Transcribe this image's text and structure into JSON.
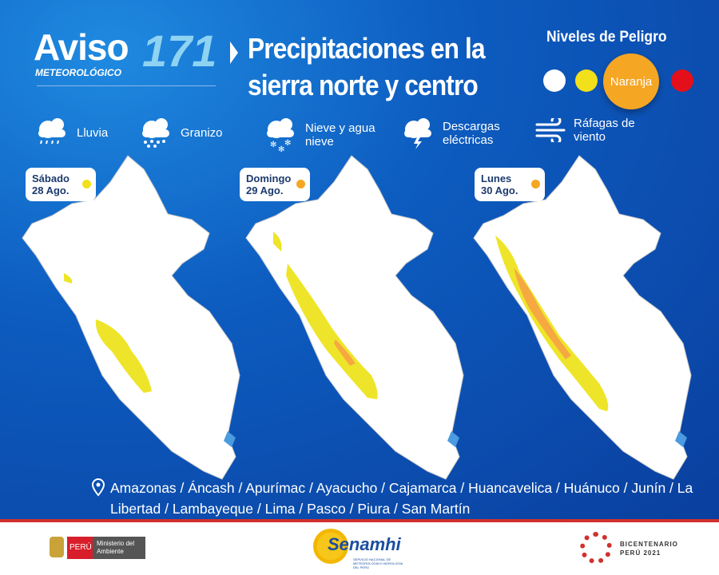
{
  "header": {
    "aviso": "Aviso",
    "subtitle": "METEOROLÓGICO",
    "number": "171",
    "title_line1": "Precipitaciones en la",
    "title_line2": "sierra norte y centro"
  },
  "levels": {
    "title": "Niveles de Peligro",
    "active_label": "Naranja",
    "colors": [
      "#ffffff",
      "#f2e01b",
      "#f5a623",
      "#e3101c"
    ]
  },
  "hazards": [
    {
      "label": "Lluvia",
      "icon": "rain-icon"
    },
    {
      "label": "Granizo",
      "icon": "hail-icon"
    },
    {
      "label": "Nieve y agua nieve",
      "icon": "snow-icon"
    },
    {
      "label": "Descargas eléctricas",
      "icon": "lightning-icon"
    },
    {
      "label": "Ráfagas de viento",
      "icon": "wind-icon"
    }
  ],
  "days": [
    {
      "day": "Sábado",
      "date": "28 Ago.",
      "level_color": "#f2e01b"
    },
    {
      "day": "Domingo",
      "date": "29 Ago.",
      "level_color": "#f5a623"
    },
    {
      "day": "Lunes",
      "date": "30 Ago.",
      "level_color": "#f5a623"
    }
  ],
  "regions": {
    "icon": "location-pin-icon",
    "text": "Amazonas / Áncash / Apurímac / Ayacucho / Cajamarca / Huancavelica / Huánuco / Junín / La Libertad / Lambayeque / Lima / Pasco / Piura / San Martín"
  },
  "footer": {
    "peru": "PERÚ",
    "ministry": "Ministerio del Ambiente",
    "senamhi": "Senamhi",
    "senamhi_sub": "SERVICIO NACIONAL DE METEOROLOGÍA E HIDROLOGÍA DEL PERÚ",
    "bicentenario": "BICENTENARIO",
    "bicentenario_sub": "PERÚ 2021"
  }
}
